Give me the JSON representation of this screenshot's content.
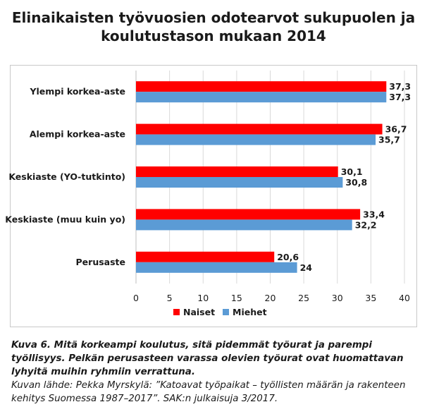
{
  "title_line1": "Elinaikaisten työvuosien odotearvot sukupuolen ja",
  "title_line2": "koulutustason mukaan 2014",
  "caption_main": "Kuva 6. Mitä korkeampi koulutus, sitä pidemmät työurat ja parempi työllisyys. Pelkän perusasteen varassa olevien työurat ovat huomattavan lyhyitä muihin ryhmiin verrattuna.",
  "caption_source": "Kuvan lähde: Pekka Myrskylä: ”Katoavat työpaikat – työllisten määrän ja rakenteen kehitys Suomessa 1987–2017”. SAK:n julkaisuja 3/2017.",
  "chart_data": {
    "type": "bar",
    "orientation": "horizontal",
    "title": "Elinaikaisten työvuosien odotearvot sukupuolen ja koulutustason mukaan 2014",
    "categories": [
      "Ylempi korkea-aste",
      "Alempi korkea-aste",
      "Keskiaste (YO-tutkinto)",
      "Keskiaste (muu kuin yo)",
      "Perusaste"
    ],
    "series": [
      {
        "name": "Naiset",
        "color": "#ff0000",
        "values": [
          37.3,
          36.7,
          30.1,
          33.4,
          20.6
        ],
        "labels": [
          "37,3",
          "36,7",
          "30,1",
          "33,4",
          "20,6"
        ]
      },
      {
        "name": "Miehet",
        "color": "#5b9bd5",
        "values": [
          37.3,
          35.7,
          30.8,
          32.2,
          24
        ],
        "labels": [
          "37,3",
          "35,7",
          "30,8",
          "32,2",
          "24"
        ]
      }
    ],
    "xlim": [
      0,
      40
    ],
    "xticks": [
      0,
      5,
      10,
      15,
      20,
      25,
      30,
      35,
      40
    ],
    "grid": true,
    "legend_position": "bottom"
  }
}
